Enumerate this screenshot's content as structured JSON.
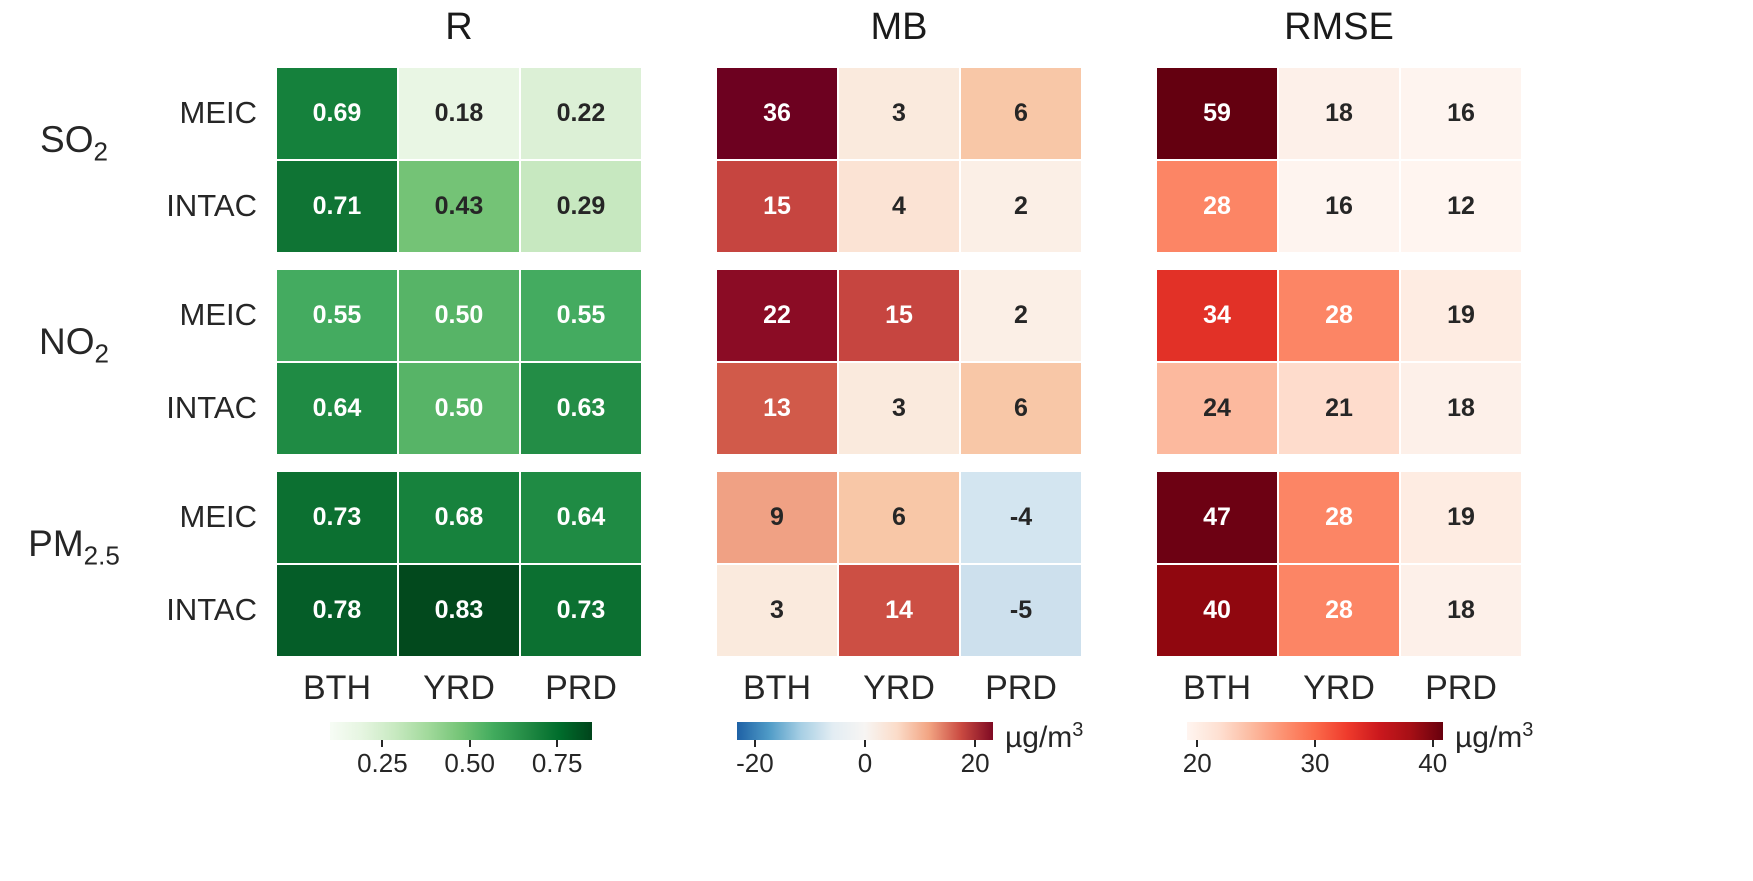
{
  "figure": {
    "background": "#ffffff",
    "text_color": "#262626"
  },
  "chart_data": {
    "type": "heatmap",
    "description": "Three heatmap panels (R, MB, RMSE) comparing MEIC and INTAC emission inventories for SO2, NO2, PM2.5 over regions BTH, YRD, PRD",
    "columns": [
      "BTH",
      "YRD",
      "PRD"
    ],
    "row_groups": [
      {
        "label": "SO2",
        "base": "SO",
        "sub": "2"
      },
      {
        "label": "NO2",
        "base": "NO",
        "sub": "2"
      },
      {
        "label": "PM2.5",
        "base": "PM",
        "sub": "2.5"
      }
    ],
    "row_labels": [
      "MEIC",
      "INTAC"
    ],
    "panels": [
      {
        "title": "R",
        "unit_base": null,
        "unit_sup": null,
        "colorbar": {
          "ticks": [
            {
              "label": "0.25",
              "pos": 0.2
            },
            {
              "label": "0.50",
              "pos": 0.533
            },
            {
              "label": "0.75",
              "pos": 0.867
            }
          ],
          "gradient": [
            "#f7fcf5",
            "#e5f5e0",
            "#c7e9c0",
            "#a1d99b",
            "#74c476",
            "#41ab5d",
            "#238b45",
            "#006d2c",
            "#00441b"
          ]
        },
        "rows": [
          {
            "group": "SO2",
            "source": "MEIC",
            "cells": [
              {
                "v": "0.69",
                "bg": "#15813c",
                "fg": "#ffffff"
              },
              {
                "v": "0.18",
                "bg": "#e9f6e4",
                "fg": "#262626"
              },
              {
                "v": "0.22",
                "bg": "#dcf0d6",
                "fg": "#262626"
              }
            ]
          },
          {
            "group": "SO2",
            "source": "INTAC",
            "cells": [
              {
                "v": "0.71",
                "bg": "#0f7434",
                "fg": "#ffffff"
              },
              {
                "v": "0.43",
                "bg": "#74c376",
                "fg": "#262626"
              },
              {
                "v": "0.29",
                "bg": "#c7e8c0",
                "fg": "#262626"
              }
            ]
          },
          {
            "group": "NO2",
            "source": "MEIC",
            "cells": [
              {
                "v": "0.55",
                "bg": "#44ab60",
                "fg": "#ffffff"
              },
              {
                "v": "0.50",
                "bg": "#57b467",
                "fg": "#ffffff"
              },
              {
                "v": "0.55",
                "bg": "#44ab60",
                "fg": "#ffffff"
              }
            ]
          },
          {
            "group": "NO2",
            "source": "INTAC",
            "cells": [
              {
                "v": "0.64",
                "bg": "#1f8b44",
                "fg": "#ffffff"
              },
              {
                "v": "0.50",
                "bg": "#57b467",
                "fg": "#ffffff"
              },
              {
                "v": "0.63",
                "bg": "#238d46",
                "fg": "#ffffff"
              }
            ]
          },
          {
            "group": "PM2.5",
            "source": "MEIC",
            "cells": [
              {
                "v": "0.73",
                "bg": "#0c7031",
                "fg": "#ffffff"
              },
              {
                "v": "0.68",
                "bg": "#17823d",
                "fg": "#ffffff"
              },
              {
                "v": "0.64",
                "bg": "#1f8b44",
                "fg": "#ffffff"
              }
            ]
          },
          {
            "group": "PM2.5",
            "source": "INTAC",
            "cells": [
              {
                "v": "0.78",
                "bg": "#055d28",
                "fg": "#ffffff"
              },
              {
                "v": "0.83",
                "bg": "#02491d",
                "fg": "#ffffff"
              },
              {
                "v": "0.73",
                "bg": "#0c7031",
                "fg": "#ffffff"
              }
            ]
          }
        ]
      },
      {
        "title": "MB",
        "unit_base": "µg/m",
        "unit_sup": "3",
        "colorbar": {
          "ticks": [
            {
              "label": "-20",
              "pos": 0.07
            },
            {
              "label": "0",
              "pos": 0.5
            },
            {
              "label": "20",
              "pos": 0.93
            }
          ],
          "gradient": [
            "#1e61a5",
            "#4f9bc7",
            "#a7cfe4",
            "#e3edf3",
            "#f7f5f3",
            "#fbdcc9",
            "#f2a482",
            "#ca4a41",
            "#7f0a23"
          ]
        },
        "rows": [
          {
            "group": "SO2",
            "source": "MEIC",
            "cells": [
              {
                "v": "36",
                "bg": "#6d0120",
                "fg": "#ffffff"
              },
              {
                "v": "3",
                "bg": "#faeadd",
                "fg": "#262626"
              },
              {
                "v": "6",
                "bg": "#f8c7a7",
                "fg": "#262626"
              }
            ]
          },
          {
            "group": "SO2",
            "source": "INTAC",
            "cells": [
              {
                "v": "15",
                "bg": "#c64540",
                "fg": "#ffffff"
              },
              {
                "v": "4",
                "bg": "#fbe3d4",
                "fg": "#262626"
              },
              {
                "v": "2",
                "bg": "#fbefe6",
                "fg": "#262626"
              }
            ]
          },
          {
            "group": "NO2",
            "source": "MEIC",
            "cells": [
              {
                "v": "22",
                "bg": "#8b0c25",
                "fg": "#ffffff"
              },
              {
                "v": "15",
                "bg": "#c64540",
                "fg": "#ffffff"
              },
              {
                "v": "2",
                "bg": "#fbefe6",
                "fg": "#262626"
              }
            ]
          },
          {
            "group": "NO2",
            "source": "INTAC",
            "cells": [
              {
                "v": "13",
                "bg": "#d15a4a",
                "fg": "#ffffff"
              },
              {
                "v": "3",
                "bg": "#faeadd",
                "fg": "#262626"
              },
              {
                "v": "6",
                "bg": "#f8c7a7",
                "fg": "#262626"
              }
            ]
          },
          {
            "group": "PM2.5",
            "source": "MEIC",
            "cells": [
              {
                "v": "9",
                "bg": "#f0a184",
                "fg": "#262626"
              },
              {
                "v": "6",
                "bg": "#f8c7a7",
                "fg": "#262626"
              },
              {
                "v": "-4",
                "bg": "#d3e5f0",
                "fg": "#262626"
              }
            ]
          },
          {
            "group": "PM2.5",
            "source": "INTAC",
            "cells": [
              {
                "v": "3",
                "bg": "#faeadd",
                "fg": "#262626"
              },
              {
                "v": "14",
                "bg": "#cc4f44",
                "fg": "#ffffff"
              },
              {
                "v": "-5",
                "bg": "#cde0ed",
                "fg": "#262626"
              }
            ]
          }
        ]
      },
      {
        "title": "RMSE",
        "unit_base": "µg/m",
        "unit_sup": "3",
        "colorbar": {
          "ticks": [
            {
              "label": "20",
              "pos": 0.04
            },
            {
              "label": "30",
              "pos": 0.5
            },
            {
              "label": "40",
              "pos": 0.96
            }
          ],
          "gradient": [
            "#fff5f0",
            "#fee0d2",
            "#fcbba1",
            "#fc9272",
            "#fb6a4a",
            "#ef3b2c",
            "#cb181d",
            "#a50f15",
            "#67000d"
          ]
        },
        "rows": [
          {
            "group": "SO2",
            "source": "MEIC",
            "cells": [
              {
                "v": "59",
                "bg": "#640010",
                "fg": "#ffffff"
              },
              {
                "v": "18",
                "bg": "#fdf0e9",
                "fg": "#262626"
              },
              {
                "v": "16",
                "bg": "#fef4ef",
                "fg": "#262626"
              }
            ]
          },
          {
            "group": "SO2",
            "source": "INTAC",
            "cells": [
              {
                "v": "28",
                "bg": "#fc8565",
                "fg": "#ffffff"
              },
              {
                "v": "16",
                "bg": "#fef4ef",
                "fg": "#262626"
              },
              {
                "v": "12",
                "bg": "#fff5f0",
                "fg": "#262626"
              }
            ]
          },
          {
            "group": "NO2",
            "source": "MEIC",
            "cells": [
              {
                "v": "34",
                "bg": "#e23127",
                "fg": "#ffffff"
              },
              {
                "v": "28",
                "bg": "#fc8565",
                "fg": "#ffffff"
              },
              {
                "v": "19",
                "bg": "#feece2",
                "fg": "#262626"
              }
            ]
          },
          {
            "group": "NO2",
            "source": "INTAC",
            "cells": [
              {
                "v": "24",
                "bg": "#fcb99e",
                "fg": "#262626"
              },
              {
                "v": "21",
                "bg": "#fedccc",
                "fg": "#262626"
              },
              {
                "v": "18",
                "bg": "#fdf0e9",
                "fg": "#262626"
              }
            ]
          },
          {
            "group": "PM2.5",
            "source": "MEIC",
            "cells": [
              {
                "v": "47",
                "bg": "#6d0113",
                "fg": "#ffffff"
              },
              {
                "v": "28",
                "bg": "#fc8565",
                "fg": "#ffffff"
              },
              {
                "v": "19",
                "bg": "#feece2",
                "fg": "#262626"
              }
            ]
          },
          {
            "group": "PM2.5",
            "source": "INTAC",
            "cells": [
              {
                "v": "40",
                "bg": "#90070f",
                "fg": "#ffffff"
              },
              {
                "v": "28",
                "bg": "#fc8565",
                "fg": "#ffffff"
              },
              {
                "v": "18",
                "bg": "#fdf0e9",
                "fg": "#262626"
              }
            ]
          }
        ]
      }
    ]
  }
}
